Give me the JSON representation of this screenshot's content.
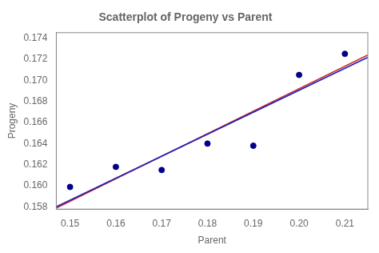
{
  "chart_data": {
    "type": "scatter",
    "title": "Scatterplot of Progeny vs Parent",
    "xlabel": "Parent",
    "ylabel": "Progeny",
    "series": [
      {
        "type": "scatter",
        "marker": "circle",
        "color": "#00008B",
        "x": [
          0.15,
          0.16,
          0.17,
          0.18,
          0.19,
          0.2,
          0.21
        ],
        "values": [
          0.1599,
          0.1618,
          0.1615,
          0.164,
          0.1638,
          0.1705,
          0.1725
        ]
      },
      {
        "type": "line",
        "line_style": "solid",
        "color": "#2222BB",
        "x": [
          0.147,
          0.215
        ],
        "values": [
          0.158026,
          0.17217
        ]
      },
      {
        "type": "line",
        "line_style": "solid",
        "color": "#CC2222",
        "x": [
          0.147,
          0.215
        ],
        "values": [
          0.157911,
          0.172395
        ]
      }
    ],
    "xlim": [
      0.147,
      0.215
    ],
    "ylim": [
      0.1578,
      0.1745
    ],
    "xticks": [
      0.15,
      0.16,
      0.17,
      0.18,
      0.19,
      {
        "value": 0.2,
        "label": "0.20"
      },
      0.21
    ],
    "yticks": [
      0.158,
      {
        "value": 0.16,
        "label": "0.160"
      },
      0.162,
      0.164,
      0.166,
      0.168,
      {
        "value": 0.17,
        "label": "0.170"
      },
      0.172,
      0.174
    ],
    "grid": false
  }
}
